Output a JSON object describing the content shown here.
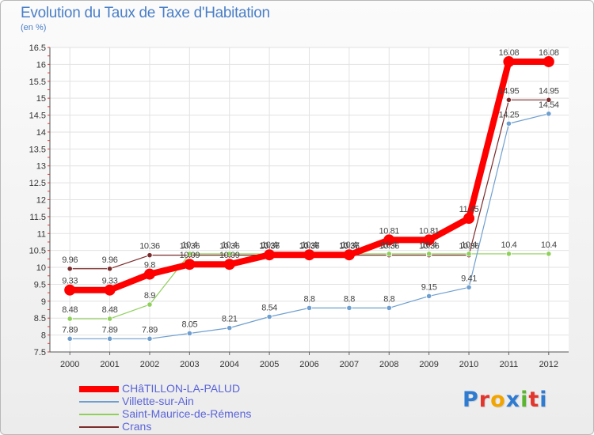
{
  "title": "Evolution du Taux de Taxe d'Habitation",
  "subtitle": "(en %)",
  "logo": {
    "text": "Proxiti",
    "letters": [
      {
        "ch": "P",
        "color": "#2e7bd1"
      },
      {
        "ch": "r",
        "color": "#e2352d"
      },
      {
        "ch": "o",
        "color": "#f2a400"
      },
      {
        "ch": "x",
        "color": "#2e7bd1"
      },
      {
        "ch": "i",
        "color": "#5cb530"
      },
      {
        "ch": "t",
        "color": "#e2352d"
      },
      {
        "ch": "i",
        "color": "#2e7bd1"
      }
    ]
  },
  "chart_data": {
    "type": "line",
    "title": "Evolution du Taux de Taxe d'Habitation",
    "ylabel": "(en %)",
    "x": [
      "2000",
      "2001",
      "2002",
      "2003",
      "2004",
      "2005",
      "2006",
      "2007",
      "2008",
      "2009",
      "2010",
      "2011",
      "2012"
    ],
    "ylim": [
      7.5,
      16.5
    ],
    "yticks": [
      7.5,
      8,
      8.5,
      9,
      9.5,
      10,
      10.5,
      11,
      11.5,
      12,
      12.5,
      13,
      13.5,
      14,
      14.5,
      15,
      15.5,
      16,
      16.5
    ],
    "grid": true,
    "legend_position": "bottom-left",
    "series": [
      {
        "name": "Crans",
        "color": "#7b2b2b",
        "values": [
          9.96,
          9.96,
          10.36,
          10.36,
          10.36,
          10.36,
          10.36,
          10.36,
          10.36,
          10.36,
          10.36,
          14.95,
          14.95
        ],
        "labels": [
          "9.96",
          "9.96",
          "10.36",
          "10.36",
          "10.36",
          "10.36",
          "10.36",
          "10.36",
          "10.36",
          "10.36",
          "10.36",
          "14.95",
          "14.95"
        ]
      },
      {
        "name": "Saint-Maurice-de-Rémens",
        "color": "#8fd05a",
        "values": [
          8.48,
          8.48,
          8.9,
          10.4,
          10.4,
          10.4,
          10.4,
          10.4,
          10.4,
          10.4,
          10.4,
          10.4,
          10.4
        ],
        "labels": [
          "8.48",
          "8.48",
          "8.9",
          "10.4",
          "10.4",
          "10.4",
          "10.4",
          "10.4",
          "10.4",
          "10.4",
          "10.4",
          "10.4",
          "10.4"
        ]
      },
      {
        "name": "Villette-sur-Ain",
        "color": "#6e9fcf",
        "values": [
          7.89,
          7.89,
          7.89,
          8.05,
          8.21,
          8.54,
          8.8,
          8.8,
          8.8,
          9.15,
          9.41,
          14.25,
          14.54
        ],
        "labels": [
          "7.89",
          "7.89",
          "7.89",
          "8.05",
          "8.21",
          "8.54",
          "8.8",
          "8.8",
          "8.8",
          "9.15",
          "9.41",
          "14.25",
          "14.54"
        ]
      },
      {
        "name": "CHâTILLON-LA-PALUD",
        "color": "#ff0000",
        "values": [
          9.33,
          9.33,
          9.8,
          10.09,
          10.09,
          10.37,
          10.37,
          10.37,
          10.81,
          10.81,
          11.45,
          16.08,
          16.08
        ],
        "labels": [
          "9.33",
          "9.33",
          "9.8",
          "10.09",
          "10.09",
          "10.37",
          "10.37",
          "10.37",
          "10.81",
          "10.81",
          "11.45",
          "16.08",
          "16.08"
        ]
      }
    ],
    "legend": [
      "CHâTILLON-LA-PALUD",
      "Villette-sur-Ain",
      "Saint-Maurice-de-Rémens",
      "Crans"
    ]
  }
}
